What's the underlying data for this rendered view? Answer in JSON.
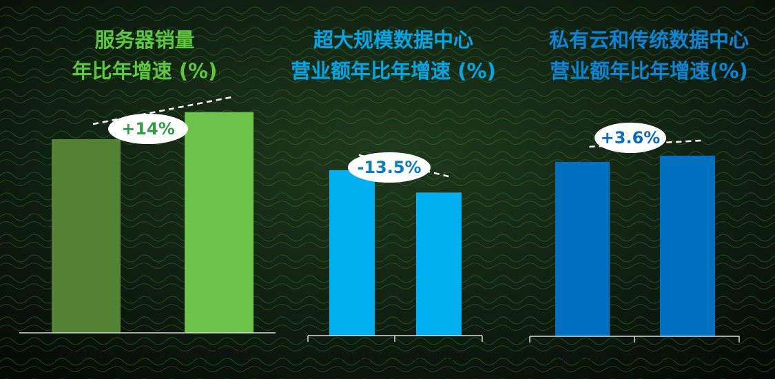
{
  "chart_data": [
    {
      "type": "bar",
      "title": [
        "服务器销量",
        "年比年增速 (%)"
      ],
      "title_color": "#5cc83c",
      "categories": [
        "Q4 1819",
        "Q4 1920"
      ],
      "values": [
        100,
        114
      ],
      "colors": [
        "#548235",
        "#6cc24a"
      ],
      "annotation": "+14%",
      "annotation_color": "#2e9e44"
    },
    {
      "type": "bar",
      "title": [
        "超大规模数据中心",
        "营业额年比年增速 (%)"
      ],
      "title_color": "#00a8e8",
      "categories": [
        "Q4 1819",
        "Q4 1920"
      ],
      "values": [
        100,
        86.5
      ],
      "colors": [
        "#00b0f0",
        "#00b0f0"
      ],
      "annotation": "-13.5%",
      "annotation_color": "#0a7cc4"
    },
    {
      "type": "bar",
      "title": [
        "私有云和传统数据中心",
        "营业额年比年增速(%)"
      ],
      "title_color": "#0a86d8",
      "categories": [
        "Q4 1819",
        "Q4 1920"
      ],
      "values": [
        100,
        103.6
      ],
      "colors": [
        "#0070c0",
        "#0070c0"
      ],
      "annotation": "+3.6%",
      "annotation_color": "#0a6cc0"
    }
  ]
}
